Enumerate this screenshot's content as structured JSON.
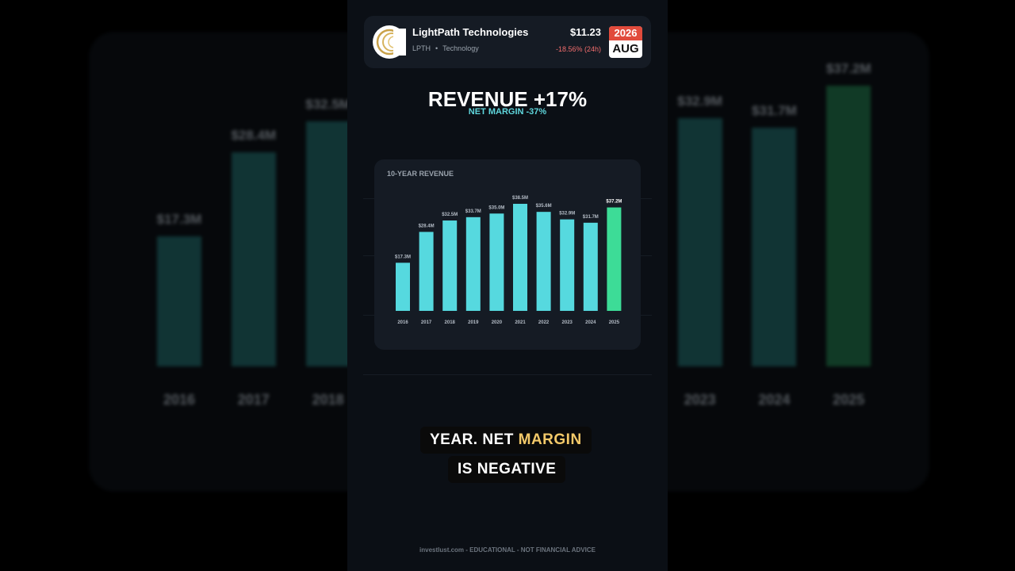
{
  "company": {
    "name": "LightPath Technologies",
    "ticker": "LPTH",
    "sector": "Technology",
    "price": "$11.23",
    "change": "-18.56% (24h)",
    "date_year": "2026",
    "date_month": "AUG",
    "logo_icon": "crescent-logo-icon"
  },
  "headline": "REVENUE +17%",
  "subline": "NET MARGIN -37%",
  "caption": {
    "line1_a": "YEAR. NET ",
    "line1_highlight": "MARGIN",
    "line2": "IS NEGATIVE"
  },
  "footer": "investlust.com - EDUCATIONAL - NOT FINANCIAL ADVICE",
  "colors": {
    "bar": "#56d9df",
    "bar_latest": "#3ddc97",
    "negative": "#f26d6d",
    "highlight": "#f3c969"
  },
  "chart_data": {
    "type": "bar",
    "title": "10-YEAR REVENUE",
    "categories": [
      "2016",
      "2017",
      "2018",
      "2019",
      "2020",
      "2021",
      "2022",
      "2023",
      "2024",
      "2025"
    ],
    "values": [
      17.3,
      28.4,
      32.5,
      33.7,
      35.0,
      38.5,
      35.6,
      32.9,
      31.7,
      37.2
    ],
    "value_labels": [
      "$17.3M",
      "$28.4M",
      "$32.5M",
      "$33.7M",
      "$35.0M",
      "$38.5M",
      "$35.6M",
      "$32.9M",
      "$31.7M",
      "$37.2M"
    ],
    "unit": "$M",
    "ylim": [
      0,
      40
    ],
    "highlight_last": true
  }
}
